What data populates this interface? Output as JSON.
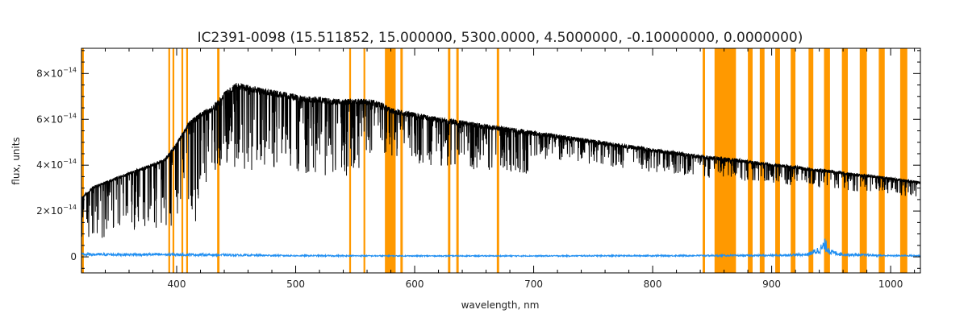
{
  "chart_data": {
    "type": "line",
    "title": "IC2391-0098   (15.511852, 15.000000, 5300.0000, 4.5000000, -0.10000000, 0.0000000)",
    "xlabel": "wavelength, nm",
    "ylabel": "flux, units",
    "xlim": [
      320,
      1025
    ],
    "ylim": [
      -7e-15,
      9.1e-14
    ],
    "x_ticks": [
      400,
      500,
      600,
      700,
      800,
      900,
      1000
    ],
    "y_ticks": [
      {
        "value": 0,
        "base": "0",
        "exp": ""
      },
      {
        "value": 2e-14,
        "base": "2×10",
        "exp": "−14"
      },
      {
        "value": 4e-14,
        "base": "4×10",
        "exp": "−14"
      },
      {
        "value": 6e-14,
        "base": "6×10",
        "exp": "−14"
      },
      {
        "value": 8e-14,
        "base": "8×10",
        "exp": "−14"
      }
    ],
    "grid": false,
    "colors": {
      "flux": "#000000",
      "error": "#1f8ef1",
      "mask": "#ff9900"
    },
    "series": [
      {
        "role": "flux",
        "x": [
          320,
          330,
          340,
          350,
          360,
          370,
          380,
          390,
          400,
          410,
          420,
          430,
          440,
          450,
          460,
          470,
          480,
          490,
          500,
          510,
          520,
          530,
          540,
          550,
          560,
          570,
          580,
          590,
          600,
          620,
          640,
          660,
          680,
          700,
          720,
          740,
          760,
          780,
          800,
          820,
          840,
          850,
          870,
          890,
          910,
          930,
          950,
          970,
          990,
          1010,
          1025
        ],
        "y": [
          2.6e-14,
          3.1e-14,
          3.3e-14,
          3.5e-14,
          3.7e-14,
          3.9e-14,
          4.1e-14,
          4.3e-14,
          5e-14,
          5.9e-14,
          6.3e-14,
          6.6e-14,
          7.2e-14,
          7.6e-14,
          7.5e-14,
          7.4e-14,
          7.3e-14,
          7.2e-14,
          7.1e-14,
          7e-14,
          7e-14,
          6.9e-14,
          6.9e-14,
          6.9e-14,
          6.9e-14,
          6.8e-14,
          6.5e-14,
          6.4e-14,
          6.3e-14,
          6.1e-14,
          5.95e-14,
          5.8e-14,
          5.65e-14,
          5.5e-14,
          5.35e-14,
          5.2e-14,
          5.05e-14,
          4.9e-14,
          4.75e-14,
          4.6e-14,
          4.45e-14,
          4.4e-14,
          4.3e-14,
          4.15e-14,
          4.05e-14,
          3.9e-14,
          3.8e-14,
          3.65e-14,
          3.55e-14,
          3.4e-14,
          3.3e-14
        ]
      },
      {
        "role": "error",
        "x": [
          320,
          400,
          500,
          600,
          700,
          800,
          900,
          930,
          940,
          945,
          950,
          960,
          1000,
          1025
        ],
        "y": [
          1e-15,
          1e-15,
          5e-16,
          4e-16,
          4e-16,
          5e-16,
          6e-16,
          1e-15,
          3e-15,
          5e-15,
          2e-15,
          1e-15,
          5e-16,
          5e-16
        ]
      }
    ],
    "mask_regions": [
      [
        320,
        322
      ],
      [
        393,
        394.5
      ],
      [
        396.5,
        398
      ],
      [
        404,
        405.5
      ],
      [
        408,
        409.5
      ],
      [
        434,
        436
      ],
      [
        545,
        546.5
      ],
      [
        557,
        558.5
      ],
      [
        575,
        584
      ],
      [
        588,
        590
      ],
      [
        628,
        630
      ],
      [
        635,
        637
      ],
      [
        669,
        671
      ],
      [
        842,
        844
      ],
      [
        852,
        870
      ],
      [
        880,
        884
      ],
      [
        890,
        894
      ],
      [
        903,
        907
      ],
      [
        916,
        920
      ],
      [
        931,
        935
      ],
      [
        944,
        949
      ],
      [
        959,
        964
      ],
      [
        974,
        980
      ],
      [
        990,
        995
      ],
      [
        1008,
        1014
      ]
    ]
  }
}
